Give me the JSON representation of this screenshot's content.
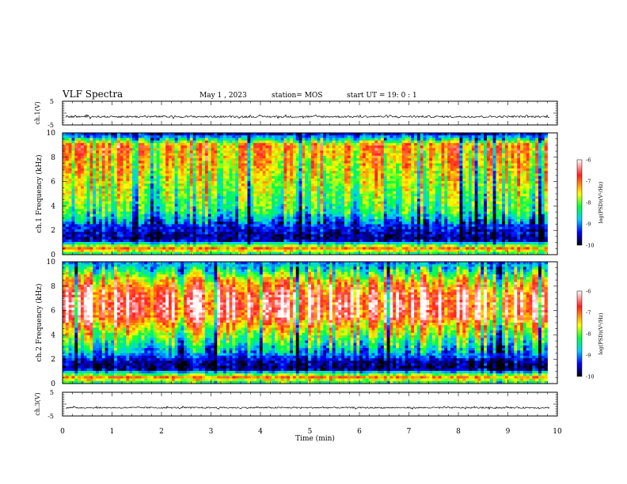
{
  "header": {
    "title": "VLF Spectra",
    "date": "May 1 , 2023",
    "station": "station= MOS",
    "start_ut": "start UT =  19: 0  : 1"
  },
  "colorbar": {
    "label": "log(PSD)(V²/Hz)",
    "ticks": [
      "-6",
      "-7",
      "-8",
      "-9",
      "-10"
    ],
    "stops": [
      "#ffffff",
      "#ff2020",
      "#ffff00",
      "#00ff40",
      "#00d0ff",
      "#0000ff",
      "#000000"
    ]
  },
  "chart_data": [
    {
      "type": "line",
      "name": "ch1-waveform",
      "ylabel": "ch.1(V)",
      "ylim": [
        -5,
        5
      ],
      "ytick_labels": [
        "5",
        "-5"
      ],
      "xlim": [
        0,
        10
      ],
      "baseline": -1.5,
      "amplitude_approx": 0.4
    },
    {
      "type": "heatmap",
      "name": "ch1-spectrogram",
      "ylabel": "ch.1 Frequency (kHz)",
      "ylim": [
        0,
        10
      ],
      "ytick_labels": [
        "0",
        "2",
        "4",
        "6",
        "8",
        "10"
      ],
      "xlim": [
        0,
        10.0
      ],
      "data_end_min": 9.8,
      "clim": [
        -10,
        -6
      ],
      "profile_khz": [
        0,
        0.5,
        0.9,
        1.2,
        1.8,
        2.4,
        3.5,
        5.0,
        6.5,
        8.0,
        9.0,
        9.6,
        10.0
      ],
      "profile_logpsd": [
        -8.5,
        -7.0,
        -8.5,
        -9.7,
        -9.5,
        -9.3,
        -8.3,
        -7.9,
        -7.6,
        -7.3,
        -7.1,
        -8.8,
        -9.6
      ]
    },
    {
      "type": "heatmap",
      "name": "ch2-spectrogram",
      "ylabel": "ch.2 Frequency (kHz)",
      "ylim": [
        0,
        10
      ],
      "ytick_labels": [
        "0",
        "2",
        "4",
        "6",
        "8",
        "10"
      ],
      "xlim": [
        0,
        10.0
      ],
      "data_end_min": 9.8,
      "clim": [
        -10,
        -6
      ],
      "profile_khz": [
        0,
        0.5,
        0.9,
        1.2,
        1.8,
        2.4,
        3.5,
        4.5,
        5.5,
        6.5,
        7.5,
        8.5,
        9.3,
        10.0
      ],
      "profile_logpsd": [
        -8.5,
        -7.0,
        -8.6,
        -9.8,
        -9.6,
        -9.0,
        -8.2,
        -7.5,
        -6.6,
        -6.4,
        -6.7,
        -7.4,
        -8.4,
        -9.0
      ]
    },
    {
      "type": "line",
      "name": "ch3-waveform",
      "ylabel": "ch.3(V)",
      "ylim": [
        -5,
        5
      ],
      "ytick_labels": [
        "5",
        "-5"
      ],
      "xlim": [
        0,
        10
      ],
      "baseline": -1.5,
      "amplitude_approx": 0.3
    }
  ],
  "xaxis": {
    "label": "Time (min)",
    "ticks": [
      "0",
      "1",
      "2",
      "3",
      "4",
      "5",
      "6",
      "7",
      "8",
      "9",
      "10"
    ]
  }
}
